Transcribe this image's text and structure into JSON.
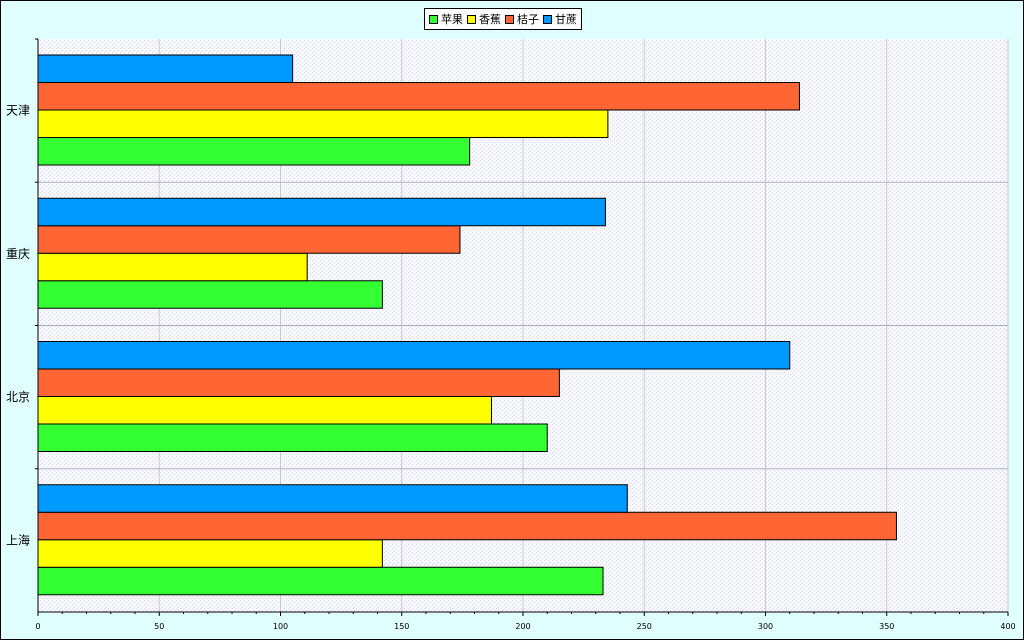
{
  "chart_data": {
    "type": "bar",
    "orientation": "horizontal",
    "categories": [
      "天津",
      "重庆",
      "北京",
      "上海"
    ],
    "series": [
      {
        "name": "苹果",
        "color": "#33ff33",
        "values": [
          178,
          142,
          210,
          233
        ]
      },
      {
        "name": "香蕉",
        "color": "#ffff00",
        "values": [
          235,
          111,
          187,
          142
        ]
      },
      {
        "name": "桔子",
        "color": "#ff6633",
        "values": [
          314,
          174,
          215,
          354
        ]
      },
      {
        "name": "甘蔗",
        "color": "#0099ff",
        "values": [
          105,
          234,
          310,
          243
        ]
      }
    ],
    "xlim": [
      0,
      400
    ],
    "x_ticks": [
      "0",
      "50",
      "100",
      "150",
      "200",
      "250",
      "300",
      "350",
      "400"
    ],
    "grid": true,
    "legend_position": "top-center"
  }
}
